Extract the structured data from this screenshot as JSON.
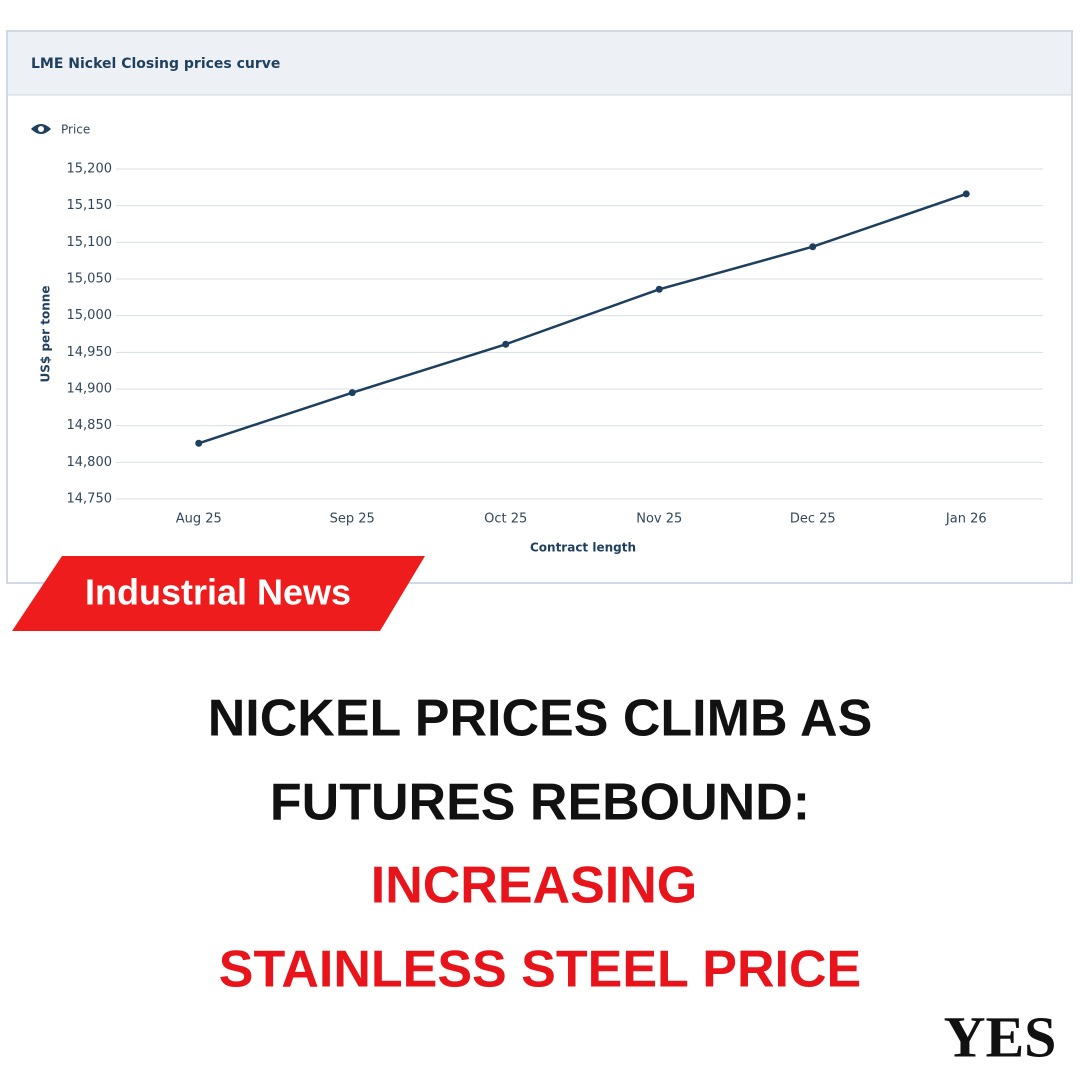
{
  "chart_data": {
    "type": "line",
    "title": "LME Nickel Closing prices curve",
    "x_label": "Contract length",
    "y_label": "US$ per tonne",
    "categories": [
      "Aug 25",
      "Sep 25",
      "Oct 25",
      "Nov 25",
      "Dec 25",
      "Jan 26"
    ],
    "series": [
      {
        "name": "Price",
        "color": "#1f3f5f",
        "values": [
          14826,
          14895,
          14961,
          15036,
          15094,
          15166
        ]
      }
    ],
    "ylim": [
      14750,
      15200
    ],
    "yticks": [
      {
        "value": 14750,
        "label": "14,750"
      },
      {
        "value": 14800,
        "label": "14,800"
      },
      {
        "value": 14850,
        "label": "14,850"
      },
      {
        "value": 14900,
        "label": "14,900"
      },
      {
        "value": 14950,
        "label": "14,950"
      },
      {
        "value": 15000,
        "label": "15,000"
      },
      {
        "value": 15050,
        "label": "15,050"
      },
      {
        "value": 15100,
        "label": "15,100"
      },
      {
        "value": 15150,
        "label": "15,150"
      },
      {
        "value": 15200,
        "label": "15,200"
      }
    ],
    "grid": true
  },
  "banner": "Industrial News",
  "headline": {
    "lines": [
      "NICKEL PRICES CLIMB AS",
      "FUTURES REBOUND:"
    ],
    "highlight": [
      "INCREASING",
      "STAINLESS STEEL PRICE"
    ]
  },
  "logo": "YES"
}
